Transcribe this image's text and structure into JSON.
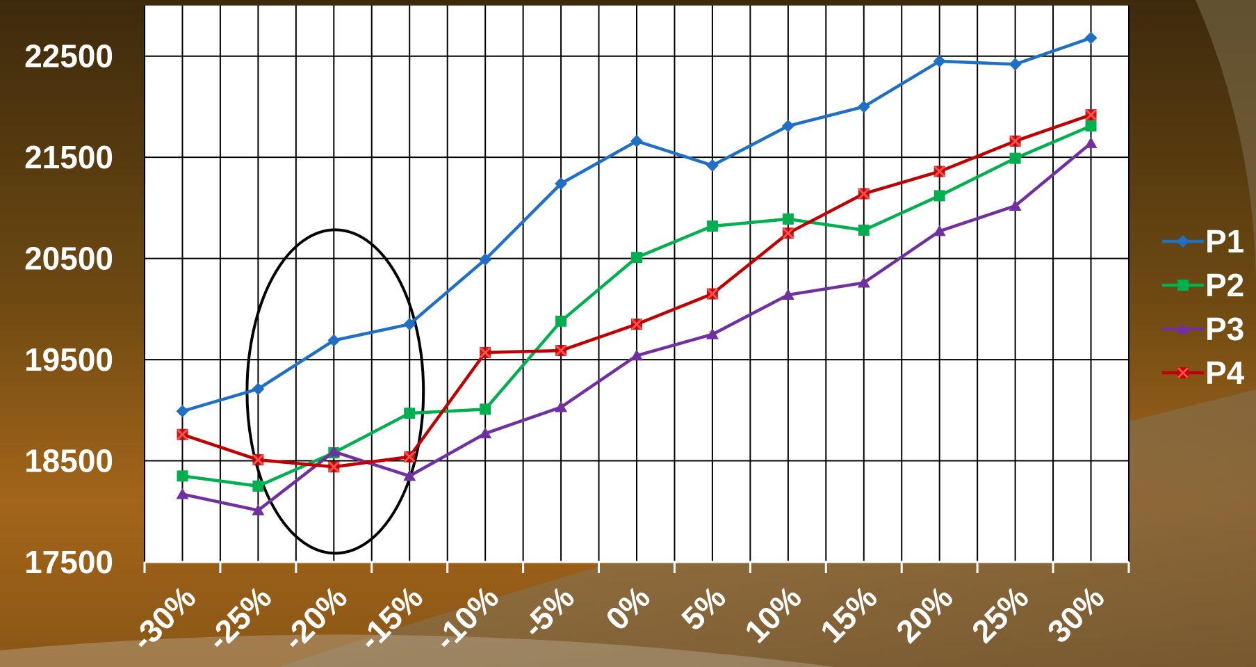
{
  "chart_data": {
    "type": "line",
    "title": "",
    "xlabel": "",
    "ylabel": "",
    "categories": [
      "-30%",
      "-25%",
      "-20%",
      "-15%",
      "-10%",
      "-5%",
      "0%",
      "5%",
      "10%",
      "15%",
      "20%",
      "25%",
      "30%"
    ],
    "ylim": [
      17500,
      23000
    ],
    "yticks": [
      "17500",
      "18500",
      "19500",
      "20500",
      "21500",
      "22500"
    ],
    "grid": true,
    "legend_position": "right",
    "series": [
      {
        "name": "P1",
        "color": "#1f6fc5",
        "marker": "diamond",
        "values": [
          18990,
          19210,
          19690,
          19850,
          20490,
          21240,
          21660,
          21420,
          21810,
          22000,
          22450,
          22420,
          22680
        ]
      },
      {
        "name": "P2",
        "color": "#00b050",
        "marker": "square",
        "values": [
          18350,
          18250,
          18580,
          18970,
          19010,
          19880,
          20510,
          20820,
          20890,
          20780,
          21120,
          21490,
          21810
        ]
      },
      {
        "name": "P3",
        "color": "#7030a0",
        "marker": "triangle",
        "values": [
          18170,
          18010,
          18590,
          18350,
          18770,
          19030,
          19540,
          19750,
          20140,
          20260,
          20770,
          21020,
          21640
        ]
      },
      {
        "name": "P4",
        "color": "#c00000",
        "marker": "x-square",
        "values": [
          18760,
          18510,
          18440,
          18540,
          19570,
          19590,
          19850,
          20150,
          20750,
          21140,
          21360,
          21660,
          21920
        ]
      }
    ],
    "annotations": [
      {
        "type": "ellipse",
        "description": "outline",
        "around_categories": [
          "-25%",
          "-15%"
        ]
      }
    ]
  }
}
